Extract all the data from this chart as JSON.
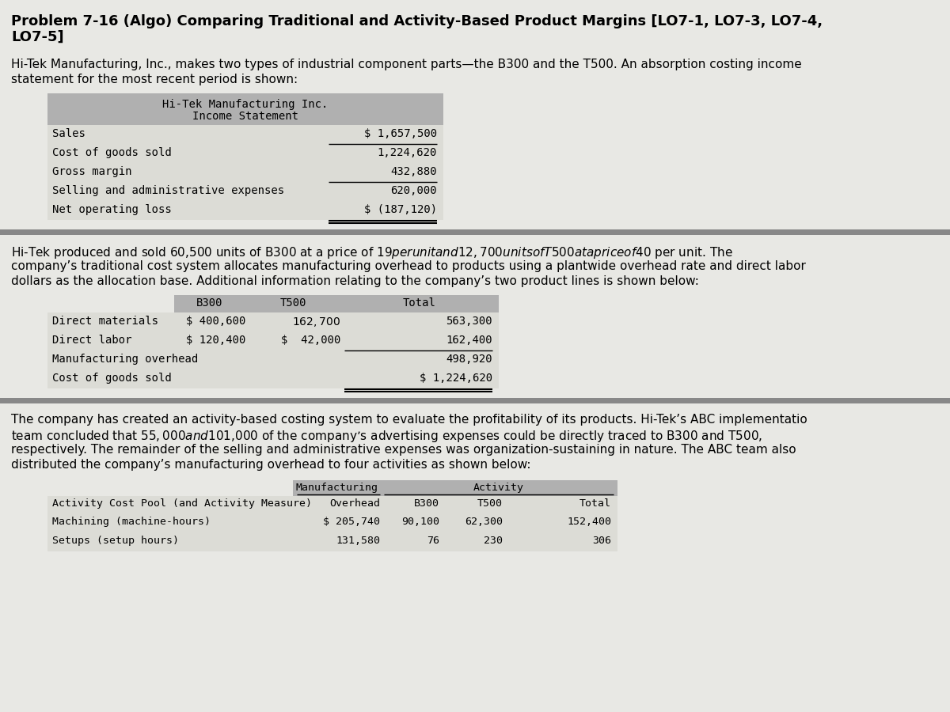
{
  "title_line1": "Problem 7-16 (Algo) Comparing Traditional and Activity-Based Product Margins [LO7-1, LO7-3, LO7-4,",
  "title_line2": "LO7-5]",
  "bg_color": "#e8e8e4",
  "header_bg": "#b0b0b0",
  "row_bg": "#dcdcd6",
  "sep_color": "#888888",
  "intro_text_lines": [
    "Hi-Tek Manufacturing, Inc., makes two types of industrial component parts—the B300 and the T500. An absorption costing income",
    "statement for the most recent period is shown:"
  ],
  "income_stmt_title1": "Hi-Tek Manufacturing Inc.",
  "income_stmt_title2": "Income Statement",
  "income_stmt_rows": [
    [
      "Sales",
      "$ 1,657,500",
      false
    ],
    [
      "Cost of goods sold",
      "1,224,620",
      true
    ],
    [
      "Gross margin",
      "432,880",
      false
    ],
    [
      "Selling and administrative expenses",
      "620,000",
      true
    ],
    [
      "Net operating loss",
      "$ (187,120)",
      false
    ]
  ],
  "middle_text_lines": [
    "Hi-Tek produced and sold 60,500 units of B300 at a price of $19 per unit and 12,700 units of T500 at a price of $40 per unit. The",
    "company’s traditional cost system allocates manufacturing overhead to products using a plantwide overhead rate and direct labor",
    "dollars as the allocation base. Additional information relating to the company’s two product lines is shown below:"
  ],
  "t2_headers": [
    "B300",
    "T500",
    "Total"
  ],
  "t2_rows": [
    [
      "Direct materials",
      "$ 400,600",
      "$ 162,700  $",
      "563,300",
      false
    ],
    [
      "Direct labor",
      "$ 120,400",
      "$  42,000",
      "162,400",
      false
    ],
    [
      "Manufacturing overhead",
      "",
      "",
      "498,920",
      true
    ],
    [
      "Cost of goods sold",
      "",
      "",
      "$ 1,224,620",
      false
    ]
  ],
  "bottom_text_lines": [
    "The company has created an activity-based costing system to evaluate the profitability of its products. Hi-Tek’s ABC implementatio",
    "team concluded that $55,000 and $101,000 of the company’s advertising expenses could be directly traced to B300 and T500,",
    "respectively. The remainder of the selling and administrative expenses was organization-sustaining in nature. The ABC team also",
    "distributed the company’s manufacturing overhead to four activities as shown below:"
  ],
  "t3_col_header1": "Manufacturing",
  "t3_col_header2": "Activity",
  "t3_sub_headers": [
    "Activity Cost Pool (and Activity Measure)",
    "Overhead",
    "B300",
    "T500",
    "Total"
  ],
  "t3_rows": [
    [
      "Machining (machine-hours)",
      "$ 205,740",
      "90,100",
      "62,300",
      "152,400"
    ],
    [
      "Setups (setup hours)",
      "131,580",
      "76",
      "230",
      "306"
    ]
  ]
}
